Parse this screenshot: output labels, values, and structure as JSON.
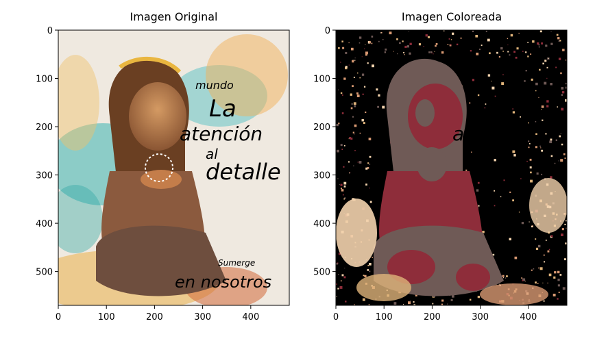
{
  "figure": {
    "panels": [
      {
        "title": "Imagen Original",
        "image_icon": "painting-girl-original-image",
        "palette": [
          "#efe9e0",
          "#2fb0b0",
          "#e9a63f",
          "#6b4a37",
          "#c75a2b",
          "#7a3ea6"
        ]
      },
      {
        "title": "Imagen Coloreada",
        "image_icon": "painting-girl-quantized-image",
        "palette": [
          "#000000",
          "#f2d2ad",
          "#8e2d3a",
          "#6f5a56",
          "#d99a73",
          "#e0b47b"
        ]
      }
    ]
  },
  "chart_data": [
    {
      "type": "image",
      "title": "Imagen Original",
      "xlabel": "",
      "ylabel": "",
      "xlim": [
        0,
        480
      ],
      "ylim": [
        570,
        0
      ],
      "xticks": [
        0,
        100,
        200,
        300,
        400
      ],
      "yticks": [
        0,
        100,
        200,
        300,
        400,
        500
      ],
      "grid": false
    },
    {
      "type": "image",
      "title": "Imagen Coloreada",
      "xlabel": "",
      "ylabel": "",
      "xlim": [
        0,
        480
      ],
      "ylim": [
        570,
        0
      ],
      "xticks": [
        0,
        100,
        200,
        300,
        400
      ],
      "yticks": [
        0,
        100,
        200,
        300,
        400,
        500
      ],
      "grid": false
    }
  ]
}
